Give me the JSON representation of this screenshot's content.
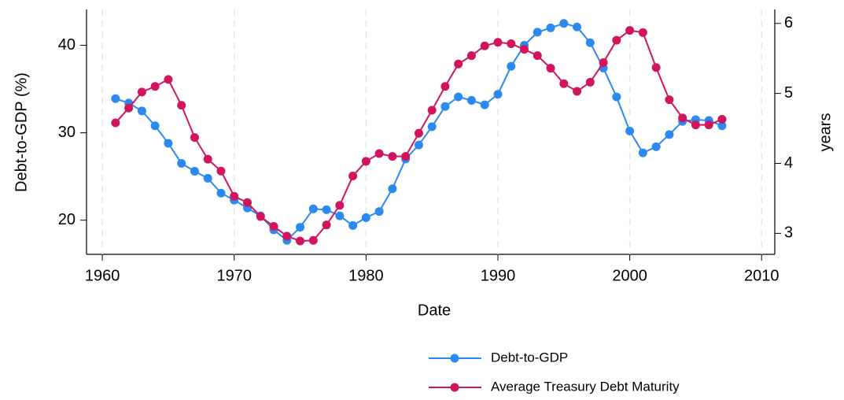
{
  "chart_data": {
    "type": "line",
    "x_label": "Date",
    "y_label": "Debt-to-GDP (%)",
    "y2_label": "years",
    "x": [
      1961,
      1962,
      1963,
      1964,
      1965,
      1966,
      1967,
      1968,
      1969,
      1970,
      1971,
      1972,
      1973,
      1974,
      1975,
      1976,
      1977,
      1978,
      1979,
      1980,
      1981,
      1982,
      1983,
      1984,
      1985,
      1986,
      1987,
      1988,
      1989,
      1990,
      1991,
      1992,
      1993,
      1994,
      1995,
      1996,
      1997,
      1998,
      1999,
      2000,
      2001,
      2002,
      2003,
      2004,
      2005,
      2006,
      2007
    ],
    "series": [
      {
        "name": "Debt-to-GDP",
        "color": "#2a8af0",
        "axis": "y",
        "values": [
          33.9,
          33.4,
          32.5,
          30.8,
          28.8,
          26.5,
          25.6,
          24.8,
          23.1,
          22.3,
          21.4,
          20.5,
          18.9,
          17.7,
          19.2,
          21.3,
          21.2,
          20.5,
          19.4,
          20.3,
          21.0,
          23.6,
          27.0,
          28.6,
          30.7,
          33.0,
          34.1,
          33.7,
          33.2,
          34.4,
          37.6,
          40.0,
          41.5,
          42.0,
          42.5,
          42.1,
          40.3,
          37.4,
          34.1,
          30.2,
          27.7,
          28.4,
          29.8,
          31.3,
          31.5,
          31.4,
          30.8
        ]
      },
      {
        "name": "Average Treasury Debt Maturity",
        "color": "#d0155e",
        "axis": "y2",
        "values": [
          4.58,
          4.79,
          5.02,
          5.1,
          5.2,
          4.83,
          4.37,
          4.06,
          3.89,
          3.53,
          3.44,
          3.24,
          3.1,
          2.96,
          2.89,
          2.9,
          3.12,
          3.4,
          3.82,
          4.03,
          4.14,
          4.1,
          4.1,
          4.43,
          4.76,
          5.1,
          5.42,
          5.54,
          5.68,
          5.73,
          5.71,
          5.63,
          5.54,
          5.36,
          5.14,
          5.03,
          5.16,
          5.44,
          5.76,
          5.9,
          5.87,
          5.37,
          4.91,
          4.65,
          4.55,
          4.55,
          4.63
        ]
      }
    ],
    "xlim": [
      1958.8,
      2011
    ],
    "xticks": [
      1960,
      1970,
      1980,
      1990,
      2000,
      2010
    ],
    "ylim": [
      16.1,
      44.1
    ],
    "yticks": [
      20,
      30,
      40
    ],
    "y2lim": [
      2.7,
      6.2
    ],
    "y2ticks": [
      3,
      4,
      5,
      6
    ],
    "grid": true
  }
}
